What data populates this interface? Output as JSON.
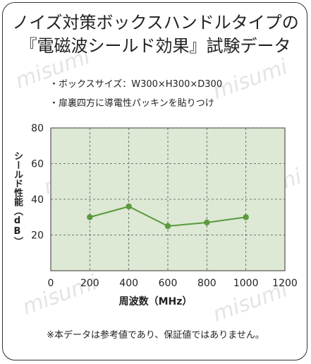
{
  "header": {
    "title_line1": "ノイズ対策ボックスハンドルタイプの",
    "title_line2": "『電磁波シールド効果』試験データ"
  },
  "notes": [
    "・ボックスサイズ：W300×H300×D300",
    "・扉裏四方に導電性パッキンを貼りつけ"
  ],
  "footer": "※本データは参考値であり、保証値ではありません。",
  "watermark": "misumi",
  "colors": {
    "plot_bg": "#dde8d5",
    "line": "#5a9a3c",
    "grid": "#555555"
  },
  "chart_data": {
    "type": "line",
    "xlabel": "周波数（MHz）",
    "ylabel": "シールド性能（dB）",
    "xlim": [
      0,
      1200
    ],
    "ylim": [
      0,
      80
    ],
    "xticks": [
      "0",
      "200",
      "400",
      "600",
      "800",
      "1000",
      "1200"
    ],
    "yticks": [
      "20",
      "40",
      "60",
      "80"
    ],
    "grid": true,
    "series": [
      {
        "x": [
          200,
          400,
          600,
          800,
          1000
        ],
        "y": [
          30,
          36,
          25,
          27,
          30
        ]
      }
    ]
  }
}
